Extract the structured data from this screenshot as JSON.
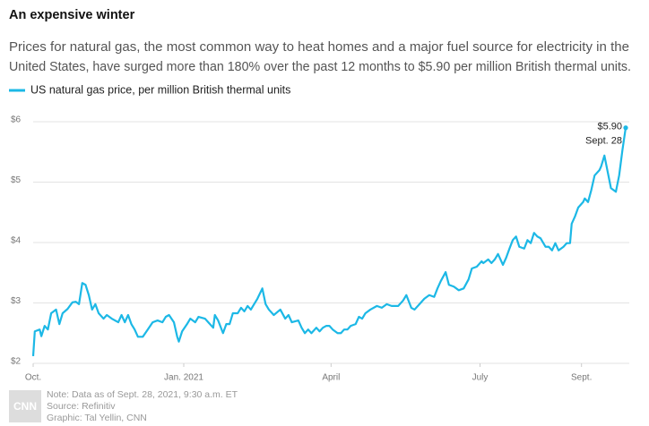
{
  "chart_data": {
    "type": "line",
    "title": "An expensive winter",
    "subtitle": [
      "Prices for natural gas, the most common way to heat homes and a major fuel source for electricity in the",
      "United States, have surged more than 180% over the past 12 months to $5.90 per million British thermal units."
    ],
    "x": [
      "2020-10-01",
      "2020-10-02",
      "2020-10-05",
      "2020-10-06",
      "2020-10-08",
      "2020-10-10",
      "2020-10-12",
      "2020-10-15",
      "2020-10-17",
      "2020-10-19",
      "2020-10-22",
      "2020-10-25",
      "2020-10-27",
      "2020-10-29",
      "2020-10-31",
      "2020-11-02",
      "2020-11-04",
      "2020-11-06",
      "2020-11-08",
      "2020-11-10",
      "2020-11-13",
      "2020-11-15",
      "2020-11-18",
      "2020-11-22",
      "2020-11-24",
      "2020-11-26",
      "2020-11-28",
      "2020-11-30",
      "2020-12-02",
      "2020-12-04",
      "2020-12-07",
      "2020-12-10",
      "2020-12-13",
      "2020-12-16",
      "2020-12-19",
      "2020-12-21",
      "2020-12-23",
      "2020-12-26",
      "2020-12-28",
      "2020-12-29",
      "2020-12-31",
      "2021-01-03",
      "2021-01-05",
      "2021-01-08",
      "2021-01-10",
      "2021-01-14",
      "2021-01-16",
      "2021-01-19",
      "2021-01-20",
      "2021-01-22",
      "2021-01-25",
      "2021-01-27",
      "2021-01-29",
      "2021-01-31",
      "2021-02-03",
      "2021-02-05",
      "2021-02-07",
      "2021-02-09",
      "2021-02-11",
      "2021-02-13",
      "2021-02-15",
      "2021-02-18",
      "2021-02-20",
      "2021-02-22",
      "2021-02-25",
      "2021-03-01",
      "2021-03-04",
      "2021-03-06",
      "2021-03-08",
      "2021-03-12",
      "2021-03-14",
      "2021-03-16",
      "2021-03-18",
      "2021-03-20",
      "2021-03-23",
      "2021-03-25",
      "2021-03-27",
      "2021-03-29",
      "2021-03-31",
      "2021-04-02",
      "2021-04-05",
      "2021-04-07",
      "2021-04-09",
      "2021-04-11",
      "2021-04-13",
      "2021-04-16",
      "2021-04-18",
      "2021-04-20",
      "2021-04-22",
      "2021-04-25",
      "2021-04-29",
      "2021-05-02",
      "2021-05-05",
      "2021-05-08",
      "2021-05-12",
      "2021-05-15",
      "2021-05-17",
      "2021-05-20",
      "2021-05-22",
      "2021-05-25",
      "2021-05-28",
      "2021-05-31",
      "2021-06-03",
      "2021-06-05",
      "2021-06-07",
      "2021-06-10",
      "2021-06-12",
      "2021-06-15",
      "2021-06-18",
      "2021-06-21",
      "2021-06-24",
      "2021-06-26",
      "2021-06-29",
      "2021-07-02",
      "2021-07-03",
      "2021-07-06",
      "2021-07-08",
      "2021-07-10",
      "2021-07-12",
      "2021-07-15",
      "2021-07-17",
      "2021-07-19",
      "2021-07-21",
      "2021-07-23",
      "2021-07-25",
      "2021-07-28",
      "2021-07-30",
      "2021-08-01",
      "2021-08-03",
      "2021-08-05",
      "2021-08-07",
      "2021-08-10",
      "2021-08-12",
      "2021-08-14",
      "2021-08-16",
      "2021-08-18",
      "2021-08-21",
      "2021-08-23",
      "2021-08-25",
      "2021-08-26",
      "2021-08-28",
      "2021-08-30",
      "2021-09-02",
      "2021-09-03",
      "2021-09-05",
      "2021-09-07",
      "2021-09-09",
      "2021-09-12",
      "2021-09-13",
      "2021-09-15",
      "2021-09-17",
      "2021-09-19",
      "2021-09-22",
      "2021-09-24",
      "2021-09-26",
      "2021-09-28"
    ],
    "series": [
      {
        "name": "US natural gas price, per million British thermal units",
        "color": "#1cb8e6",
        "values": [
          2.12,
          2.53,
          2.56,
          2.45,
          2.62,
          2.56,
          2.83,
          2.89,
          2.65,
          2.83,
          2.9,
          3.01,
          3.02,
          2.98,
          3.33,
          3.3,
          3.13,
          2.89,
          2.98,
          2.83,
          2.74,
          2.8,
          2.74,
          2.68,
          2.8,
          2.68,
          2.8,
          2.65,
          2.56,
          2.44,
          2.44,
          2.56,
          2.68,
          2.71,
          2.68,
          2.77,
          2.8,
          2.68,
          2.44,
          2.36,
          2.53,
          2.65,
          2.74,
          2.68,
          2.77,
          2.74,
          2.68,
          2.59,
          2.8,
          2.71,
          2.5,
          2.65,
          2.65,
          2.83,
          2.83,
          2.92,
          2.86,
          2.95,
          2.89,
          2.98,
          3.07,
          3.24,
          2.98,
          2.89,
          2.8,
          2.89,
          2.74,
          2.8,
          2.68,
          2.71,
          2.59,
          2.5,
          2.56,
          2.5,
          2.59,
          2.53,
          2.59,
          2.62,
          2.62,
          2.56,
          2.5,
          2.5,
          2.56,
          2.56,
          2.62,
          2.65,
          2.77,
          2.74,
          2.83,
          2.89,
          2.95,
          2.92,
          2.98,
          2.95,
          2.95,
          3.04,
          3.13,
          2.92,
          2.89,
          2.98,
          3.07,
          3.13,
          3.1,
          3.24,
          3.36,
          3.51,
          3.3,
          3.27,
          3.21,
          3.24,
          3.39,
          3.57,
          3.6,
          3.69,
          3.66,
          3.72,
          3.66,
          3.72,
          3.81,
          3.63,
          3.75,
          3.9,
          4.04,
          4.1,
          3.93,
          3.9,
          4.04,
          3.99,
          4.16,
          4.1,
          4.07,
          3.93,
          3.93,
          3.87,
          3.99,
          3.87,
          3.93,
          3.99,
          3.99,
          4.31,
          4.43,
          4.58,
          4.67,
          4.73,
          4.67,
          4.87,
          5.11,
          5.2,
          5.26,
          5.44,
          5.17,
          4.9,
          4.84,
          5.11,
          5.53,
          5.9
        ]
      }
    ],
    "annotation": {
      "label": "$5.90",
      "date": "Sept. 28"
    },
    "xlim": [
      "2020-10-01",
      "2021-09-28"
    ],
    "xticks": [
      {
        "value": "2020-10-01",
        "label": "Oct."
      },
      {
        "value": "2021-01-01",
        "label": "Jan. 2021"
      },
      {
        "value": "2021-04-01",
        "label": "April"
      },
      {
        "value": "2021-07-01",
        "label": "July"
      },
      {
        "value": "2021-09-01",
        "label": "Sept."
      }
    ],
    "ylim": [
      2,
      6
    ],
    "yticks": [
      {
        "value": 2,
        "label": "$2"
      },
      {
        "value": 3,
        "label": "$3"
      },
      {
        "value": 4,
        "label": "$4"
      },
      {
        "value": 5,
        "label": "$5"
      },
      {
        "value": 6,
        "label": "$6"
      }
    ],
    "grid": true,
    "notes": [
      "Note: Data as of Sept. 28, 2021, 9:30 a.m. ET",
      "Source: Refinitiv",
      "Graphic: Tal Yellin, CNN"
    ],
    "logo": "CNN"
  }
}
